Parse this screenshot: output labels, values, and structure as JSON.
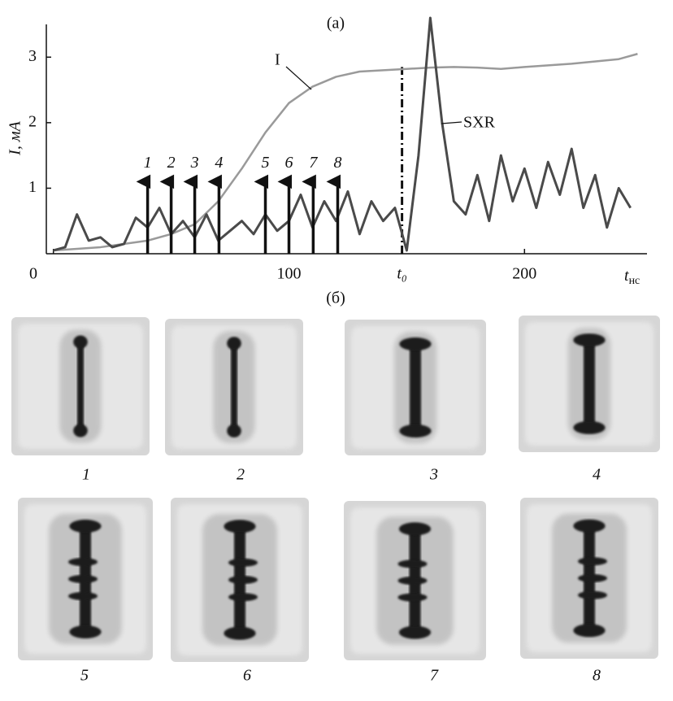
{
  "chart_data": {
    "type": "line",
    "panel_label": "(а)",
    "ylabel": "I, мА",
    "xlabel": "t",
    "xlabel_unit": "нс",
    "xlim": [
      -3,
      252
    ],
    "ylim": [
      0,
      3.5
    ],
    "xticks": [
      0,
      100,
      {
        "value": 148,
        "label": "t₀"
      },
      200
    ],
    "yticks": [
      1,
      2,
      3
    ],
    "series": [
      {
        "name": "I",
        "color": "#9a9a9a",
        "x": [
          0,
          20,
          40,
          50,
          60,
          70,
          80,
          90,
          100,
          110,
          120,
          130,
          140,
          150,
          160,
          170,
          180,
          190,
          200,
          220,
          240,
          248
        ],
        "values": [
          0.05,
          0.1,
          0.2,
          0.3,
          0.45,
          0.8,
          1.3,
          1.85,
          2.3,
          2.55,
          2.7,
          2.78,
          2.8,
          2.82,
          2.84,
          2.85,
          2.84,
          2.82,
          2.85,
          2.9,
          2.97,
          3.05
        ]
      },
      {
        "name": "SXR",
        "color": "#4a4a4a",
        "x": [
          0,
          5,
          10,
          15,
          20,
          25,
          30,
          35,
          40,
          45,
          50,
          55,
          60,
          65,
          70,
          75,
          80,
          85,
          90,
          95,
          100,
          105,
          110,
          115,
          120,
          125,
          130,
          135,
          140,
          145,
          150,
          155,
          160,
          165,
          170,
          175,
          180,
          185,
          190,
          195,
          200,
          205,
          210,
          215,
          220,
          225,
          230,
          235,
          240,
          245
        ],
        "values": [
          0.05,
          0.1,
          0.6,
          0.2,
          0.25,
          0.1,
          0.15,
          0.55,
          0.4,
          0.7,
          0.3,
          0.5,
          0.25,
          0.6,
          0.2,
          0.35,
          0.5,
          0.3,
          0.6,
          0.35,
          0.5,
          0.9,
          0.4,
          0.8,
          0.5,
          0.95,
          0.3,
          0.8,
          0.5,
          0.7,
          0.05,
          1.5,
          3.6,
          2.0,
          0.8,
          0.6,
          1.2,
          0.5,
          1.5,
          0.8,
          1.3,
          0.7,
          1.4,
          0.9,
          1.6,
          0.7,
          1.2,
          0.4,
          1.0,
          0.7
        ]
      }
    ],
    "arrows": {
      "labels": [
        "1",
        "2",
        "3",
        "4",
        "5",
        "6",
        "7",
        "8"
      ],
      "x": [
        40,
        50,
        60,
        70.3,
        90,
        100,
        110.3,
        120.7
      ],
      "top": 1.1
    },
    "t0_line_top": 2.85
  },
  "panel_b_label": "(б)",
  "frames": [
    "1",
    "2",
    "3",
    "4",
    "5",
    "6",
    "7",
    "8"
  ]
}
